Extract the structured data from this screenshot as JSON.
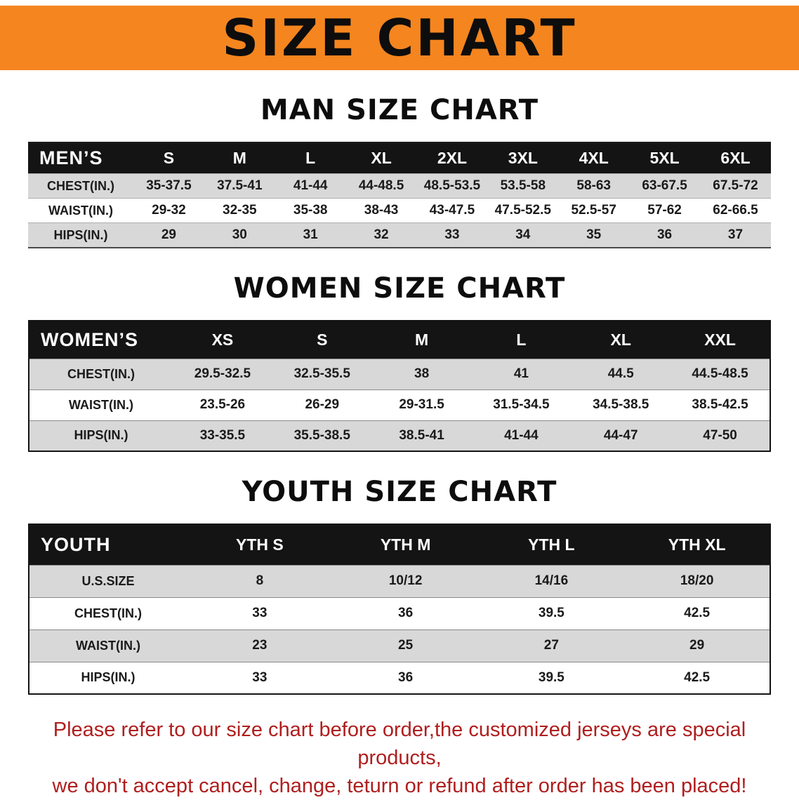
{
  "banner": {
    "title": "SIZE CHART"
  },
  "colors": {
    "banner_bg": "#f5851f",
    "table_header_bg": "#141414",
    "row_shaded": "#d8d8d8",
    "note_text": "#b01e1e"
  },
  "sections": [
    {
      "heading": "MAN SIZE CHART",
      "table": {
        "header": [
          "MEN’S",
          "S",
          "M",
          "L",
          "XL",
          "2XL",
          "3XL",
          "4XL",
          "5XL",
          "6XL"
        ],
        "rows": [
          [
            "CHEST(IN.)",
            "35-37.5",
            "37.5-41",
            "41-44",
            "44-48.5",
            "48.5-53.5",
            "53.5-58",
            "58-63",
            "63-67.5",
            "67.5-72"
          ],
          [
            "WAIST(IN.)",
            "29-32",
            "32-35",
            "35-38",
            "38-43",
            "43-47.5",
            "47.5-52.5",
            "52.5-57",
            "57-62",
            "62-66.5"
          ],
          [
            "HIPS(IN.)",
            "29",
            "30",
            "31",
            "32",
            "33",
            "34",
            "35",
            "36",
            "37"
          ]
        ]
      }
    },
    {
      "heading": "WOMEN SIZE CHART",
      "table": {
        "header": [
          "WOMEN’S",
          "XS",
          "S",
          "M",
          "L",
          "XL",
          "XXL"
        ],
        "rows": [
          [
            "CHEST(IN.)",
            "29.5-32.5",
            "32.5-35.5",
            "38",
            "41",
            "44.5",
            "44.5-48.5"
          ],
          [
            "WAIST(IN.)",
            "23.5-26",
            "26-29",
            "29-31.5",
            "31.5-34.5",
            "34.5-38.5",
            "38.5-42.5"
          ],
          [
            "HIPS(IN.)",
            "33-35.5",
            "35.5-38.5",
            "38.5-41",
            "41-44",
            "44-47",
            "47-50"
          ]
        ]
      }
    },
    {
      "heading": "YOUTH SIZE CHART",
      "table": {
        "header": [
          "YOUTH",
          "YTH S",
          "YTH M",
          "YTH L",
          "YTH XL"
        ],
        "rows": [
          [
            "U.S.SIZE",
            "8",
            "10/12",
            "14/16",
            "18/20"
          ],
          [
            "CHEST(IN.)",
            "33",
            "36",
            "39.5",
            "42.5"
          ],
          [
            "WAIST(IN.)",
            "23",
            "25",
            "27",
            "29"
          ],
          [
            "HIPS(IN.)",
            "33",
            "36",
            "39.5",
            "42.5"
          ]
        ]
      }
    }
  ],
  "footer": {
    "lines": [
      "Please refer to our size chart before order,the customized jerseys are special products,",
      "we don't accept cancel, change, teturn or refund after order has been placed!"
    ]
  }
}
